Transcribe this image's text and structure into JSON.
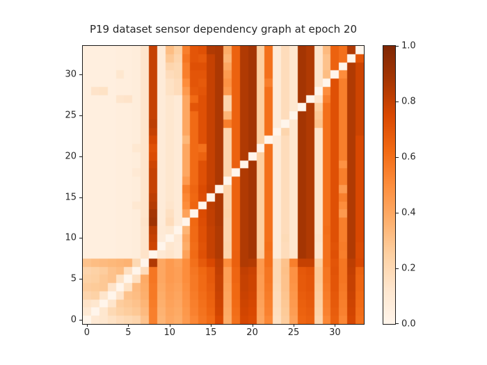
{
  "title": "P19 dataset sensor dependency graph at epoch 20",
  "chart_data": {
    "type": "heatmap",
    "title": "P19 dataset sensor dependency graph at epoch 20",
    "xlabel": "",
    "ylabel": "",
    "x_ticks": [
      0,
      5,
      10,
      15,
      20,
      25,
      30
    ],
    "y_ticks": [
      0,
      5,
      10,
      15,
      20,
      25,
      30
    ],
    "x_range": [
      0,
      34
    ],
    "y_range": [
      0,
      34
    ],
    "origin": "lower",
    "n_rows": 34,
    "n_cols": 34,
    "vmin": 0.0,
    "vmax": 1.0,
    "colormap": "Oranges",
    "colormap_stops": [
      "#fff5eb",
      "#fee6ce",
      "#fdd0a2",
      "#fdae6b",
      "#fd8d3c",
      "#f16913",
      "#d94801",
      "#a63603",
      "#7f2704"
    ],
    "colorbar": {
      "tick_labels": [
        "0.0",
        "0.2",
        "0.4",
        "0.6",
        "0.8",
        "1.0"
      ],
      "tick_values": [
        0.0,
        0.2,
        0.4,
        0.6,
        0.8,
        1.0
      ]
    },
    "values": [
      [
        0.0,
        0.1,
        0.12,
        0.15,
        0.18,
        0.2,
        0.22,
        0.3,
        0.55,
        0.35,
        0.4,
        0.38,
        0.45,
        0.52,
        0.58,
        0.62,
        0.75,
        0.38,
        0.6,
        0.76,
        0.74,
        0.4,
        0.52,
        0.16,
        0.26,
        0.42,
        0.64,
        0.66,
        0.22,
        0.52,
        0.66,
        0.52,
        0.76,
        0.6
      ],
      [
        0.1,
        0.0,
        0.12,
        0.2,
        0.24,
        0.26,
        0.28,
        0.33,
        0.55,
        0.36,
        0.41,
        0.39,
        0.46,
        0.54,
        0.59,
        0.64,
        0.77,
        0.39,
        0.61,
        0.77,
        0.75,
        0.41,
        0.54,
        0.17,
        0.27,
        0.44,
        0.65,
        0.67,
        0.24,
        0.54,
        0.67,
        0.54,
        0.77,
        0.61
      ],
      [
        0.14,
        0.12,
        0.0,
        0.13,
        0.26,
        0.28,
        0.3,
        0.35,
        0.56,
        0.37,
        0.42,
        0.4,
        0.47,
        0.55,
        0.6,
        0.65,
        0.78,
        0.4,
        0.62,
        0.78,
        0.76,
        0.42,
        0.55,
        0.18,
        0.28,
        0.45,
        0.66,
        0.68,
        0.25,
        0.55,
        0.68,
        0.55,
        0.78,
        0.62
      ],
      [
        0.22,
        0.24,
        0.13,
        0.0,
        0.14,
        0.3,
        0.32,
        0.37,
        0.57,
        0.38,
        0.43,
        0.41,
        0.48,
        0.56,
        0.61,
        0.66,
        0.79,
        0.41,
        0.63,
        0.79,
        0.77,
        0.43,
        0.56,
        0.18,
        0.29,
        0.46,
        0.67,
        0.69,
        0.26,
        0.56,
        0.69,
        0.56,
        0.79,
        0.63
      ],
      [
        0.26,
        0.27,
        0.28,
        0.14,
        0.0,
        0.15,
        0.33,
        0.38,
        0.57,
        0.39,
        0.44,
        0.42,
        0.49,
        0.57,
        0.62,
        0.67,
        0.8,
        0.42,
        0.63,
        0.8,
        0.78,
        0.44,
        0.57,
        0.19,
        0.3,
        0.47,
        0.68,
        0.7,
        0.27,
        0.57,
        0.7,
        0.57,
        0.8,
        0.64
      ],
      [
        0.24,
        0.25,
        0.28,
        0.3,
        0.15,
        0.0,
        0.16,
        0.39,
        0.58,
        0.4,
        0.45,
        0.43,
        0.5,
        0.57,
        0.62,
        0.68,
        0.8,
        0.43,
        0.64,
        0.8,
        0.78,
        0.44,
        0.58,
        0.2,
        0.3,
        0.48,
        0.68,
        0.7,
        0.28,
        0.58,
        0.7,
        0.58,
        0.8,
        0.64
      ],
      [
        0.22,
        0.24,
        0.26,
        0.3,
        0.32,
        0.16,
        0.0,
        0.18,
        0.58,
        0.4,
        0.45,
        0.43,
        0.5,
        0.58,
        0.63,
        0.68,
        0.81,
        0.43,
        0.64,
        0.81,
        0.79,
        0.45,
        0.58,
        0.2,
        0.31,
        0.48,
        0.69,
        0.71,
        0.28,
        0.58,
        0.71,
        0.58,
        0.81,
        0.65
      ],
      [
        0.3,
        0.32,
        0.33,
        0.34,
        0.35,
        0.36,
        0.2,
        0.0,
        0.85,
        0.4,
        0.45,
        0.42,
        0.5,
        0.6,
        0.68,
        0.75,
        0.82,
        0.5,
        0.66,
        0.85,
        0.84,
        0.45,
        0.6,
        0.2,
        0.3,
        0.55,
        0.8,
        0.8,
        0.25,
        0.6,
        0.7,
        0.58,
        0.82,
        0.75
      ],
      [
        0.05,
        0.05,
        0.05,
        0.05,
        0.06,
        0.06,
        0.07,
        0.14,
        0.0,
        0.1,
        0.13,
        0.09,
        0.42,
        0.62,
        0.72,
        0.8,
        0.85,
        0.22,
        0.66,
        0.85,
        0.88,
        0.26,
        0.6,
        0.08,
        0.18,
        0.13,
        0.88,
        0.85,
        0.13,
        0.6,
        0.72,
        0.55,
        0.85,
        0.74
      ],
      [
        0.05,
        0.05,
        0.05,
        0.05,
        0.06,
        0.06,
        0.07,
        0.13,
        0.78,
        0.0,
        0.12,
        0.09,
        0.38,
        0.61,
        0.71,
        0.8,
        0.85,
        0.23,
        0.65,
        0.85,
        0.88,
        0.25,
        0.61,
        0.08,
        0.18,
        0.12,
        0.88,
        0.85,
        0.13,
        0.6,
        0.71,
        0.56,
        0.85,
        0.74
      ],
      [
        0.05,
        0.05,
        0.05,
        0.05,
        0.06,
        0.06,
        0.07,
        0.13,
        0.8,
        0.08,
        0.0,
        0.1,
        0.4,
        0.62,
        0.72,
        0.8,
        0.85,
        0.22,
        0.65,
        0.85,
        0.88,
        0.25,
        0.6,
        0.08,
        0.19,
        0.12,
        0.88,
        0.85,
        0.14,
        0.6,
        0.72,
        0.55,
        0.85,
        0.75
      ],
      [
        0.05,
        0.05,
        0.05,
        0.05,
        0.06,
        0.06,
        0.07,
        0.13,
        0.82,
        0.09,
        0.11,
        0.0,
        0.35,
        0.62,
        0.72,
        0.8,
        0.85,
        0.22,
        0.65,
        0.85,
        0.88,
        0.25,
        0.6,
        0.08,
        0.18,
        0.12,
        0.88,
        0.85,
        0.13,
        0.61,
        0.72,
        0.55,
        0.85,
        0.75
      ],
      [
        0.05,
        0.05,
        0.05,
        0.05,
        0.06,
        0.06,
        0.07,
        0.14,
        0.9,
        0.08,
        0.18,
        0.09,
        0.0,
        0.63,
        0.73,
        0.81,
        0.86,
        0.22,
        0.65,
        0.85,
        0.88,
        0.25,
        0.6,
        0.08,
        0.18,
        0.12,
        0.88,
        0.85,
        0.13,
        0.6,
        0.72,
        0.55,
        0.85,
        0.75
      ],
      [
        0.05,
        0.05,
        0.05,
        0.05,
        0.06,
        0.06,
        0.07,
        0.13,
        0.88,
        0.08,
        0.16,
        0.09,
        0.42,
        0.0,
        0.74,
        0.81,
        0.86,
        0.23,
        0.65,
        0.85,
        0.88,
        0.25,
        0.6,
        0.08,
        0.18,
        0.12,
        0.88,
        0.85,
        0.13,
        0.6,
        0.72,
        0.45,
        0.85,
        0.75
      ],
      [
        0.05,
        0.05,
        0.05,
        0.05,
        0.06,
        0.06,
        0.11,
        0.13,
        0.84,
        0.08,
        0.13,
        0.09,
        0.5,
        0.64,
        0.0,
        0.82,
        0.86,
        0.22,
        0.65,
        0.85,
        0.88,
        0.25,
        0.6,
        0.08,
        0.18,
        0.12,
        0.88,
        0.85,
        0.13,
        0.6,
        0.72,
        0.5,
        0.85,
        0.75
      ],
      [
        0.05,
        0.05,
        0.05,
        0.05,
        0.06,
        0.06,
        0.07,
        0.13,
        0.82,
        0.08,
        0.12,
        0.09,
        0.52,
        0.63,
        0.73,
        0.0,
        0.86,
        0.22,
        0.65,
        0.85,
        0.88,
        0.25,
        0.6,
        0.08,
        0.18,
        0.12,
        0.88,
        0.85,
        0.13,
        0.6,
        0.72,
        0.55,
        0.85,
        0.75
      ],
      [
        0.05,
        0.05,
        0.05,
        0.05,
        0.06,
        0.06,
        0.07,
        0.13,
        0.8,
        0.08,
        0.12,
        0.09,
        0.55,
        0.64,
        0.74,
        0.81,
        0.0,
        0.22,
        0.65,
        0.85,
        0.88,
        0.25,
        0.6,
        0.08,
        0.18,
        0.12,
        0.88,
        0.85,
        0.13,
        0.6,
        0.72,
        0.45,
        0.85,
        0.75
      ],
      [
        0.05,
        0.05,
        0.05,
        0.05,
        0.06,
        0.06,
        0.07,
        0.13,
        0.8,
        0.08,
        0.12,
        0.09,
        0.45,
        0.62,
        0.72,
        0.8,
        0.86,
        0.0,
        0.65,
        0.85,
        0.88,
        0.25,
        0.6,
        0.08,
        0.18,
        0.12,
        0.88,
        0.85,
        0.13,
        0.6,
        0.72,
        0.55,
        0.85,
        0.75
      ],
      [
        0.05,
        0.05,
        0.05,
        0.05,
        0.06,
        0.06,
        0.1,
        0.13,
        0.8,
        0.08,
        0.12,
        0.09,
        0.4,
        0.62,
        0.72,
        0.8,
        0.86,
        0.22,
        0.0,
        0.85,
        0.88,
        0.25,
        0.6,
        0.08,
        0.18,
        0.12,
        0.88,
        0.85,
        0.13,
        0.6,
        0.72,
        0.55,
        0.85,
        0.75
      ],
      [
        0.05,
        0.05,
        0.05,
        0.05,
        0.06,
        0.06,
        0.07,
        0.13,
        0.78,
        0.08,
        0.12,
        0.09,
        0.4,
        0.62,
        0.72,
        0.8,
        0.86,
        0.22,
        0.66,
        0.0,
        0.88,
        0.25,
        0.6,
        0.08,
        0.18,
        0.12,
        0.88,
        0.85,
        0.13,
        0.6,
        0.72,
        0.48,
        0.85,
        0.75
      ],
      [
        0.05,
        0.05,
        0.05,
        0.05,
        0.06,
        0.06,
        0.07,
        0.13,
        0.74,
        0.08,
        0.12,
        0.09,
        0.4,
        0.62,
        0.65,
        0.8,
        0.86,
        0.22,
        0.65,
        0.85,
        0.0,
        0.25,
        0.6,
        0.08,
        0.18,
        0.12,
        0.88,
        0.85,
        0.13,
        0.6,
        0.72,
        0.55,
        0.85,
        0.75
      ],
      [
        0.05,
        0.05,
        0.05,
        0.05,
        0.06,
        0.06,
        0.11,
        0.13,
        0.72,
        0.08,
        0.12,
        0.09,
        0.4,
        0.62,
        0.6,
        0.8,
        0.86,
        0.22,
        0.65,
        0.85,
        0.88,
        0.0,
        0.6,
        0.08,
        0.18,
        0.12,
        0.88,
        0.85,
        0.13,
        0.6,
        0.72,
        0.55,
        0.85,
        0.75
      ],
      [
        0.05,
        0.05,
        0.05,
        0.05,
        0.06,
        0.06,
        0.07,
        0.13,
        0.76,
        0.08,
        0.12,
        0.09,
        0.34,
        0.62,
        0.72,
        0.8,
        0.86,
        0.22,
        0.65,
        0.85,
        0.88,
        0.25,
        0.0,
        0.08,
        0.18,
        0.12,
        0.88,
        0.85,
        0.13,
        0.6,
        0.72,
        0.55,
        0.85,
        0.75
      ],
      [
        0.05,
        0.05,
        0.05,
        0.05,
        0.06,
        0.06,
        0.07,
        0.13,
        0.8,
        0.08,
        0.12,
        0.09,
        0.4,
        0.62,
        0.72,
        0.8,
        0.86,
        0.22,
        0.65,
        0.85,
        0.88,
        0.25,
        0.6,
        0.0,
        0.22,
        0.12,
        0.88,
        0.85,
        0.13,
        0.6,
        0.72,
        0.55,
        0.85,
        0.78
      ],
      [
        0.05,
        0.05,
        0.05,
        0.05,
        0.06,
        0.06,
        0.07,
        0.13,
        0.82,
        0.08,
        0.12,
        0.09,
        0.4,
        0.62,
        0.72,
        0.8,
        0.86,
        0.55,
        0.65,
        0.85,
        0.88,
        0.25,
        0.6,
        0.08,
        0.0,
        0.12,
        0.88,
        0.85,
        0.3,
        0.6,
        0.72,
        0.55,
        0.85,
        0.78
      ],
      [
        0.05,
        0.05,
        0.05,
        0.05,
        0.06,
        0.06,
        0.07,
        0.13,
        0.8,
        0.08,
        0.12,
        0.09,
        0.4,
        0.62,
        0.72,
        0.8,
        0.86,
        0.35,
        0.65,
        0.85,
        0.88,
        0.25,
        0.6,
        0.08,
        0.18,
        0.0,
        0.88,
        0.85,
        0.28,
        0.6,
        0.72,
        0.55,
        0.85,
        0.78
      ],
      [
        0.05,
        0.05,
        0.05,
        0.05,
        0.06,
        0.06,
        0.07,
        0.13,
        0.8,
        0.08,
        0.12,
        0.09,
        0.4,
        0.7,
        0.72,
        0.8,
        0.86,
        0.22,
        0.65,
        0.85,
        0.88,
        0.25,
        0.6,
        0.08,
        0.18,
        0.12,
        0.0,
        0.85,
        0.25,
        0.6,
        0.72,
        0.55,
        0.85,
        0.78
      ],
      [
        0.05,
        0.05,
        0.05,
        0.05,
        0.13,
        0.14,
        0.07,
        0.13,
        0.8,
        0.08,
        0.12,
        0.09,
        0.4,
        0.62,
        0.72,
        0.8,
        0.86,
        0.22,
        0.65,
        0.85,
        0.88,
        0.25,
        0.6,
        0.08,
        0.18,
        0.12,
        0.88,
        0.0,
        0.13,
        0.55,
        0.72,
        0.55,
        0.85,
        0.78
      ],
      [
        0.05,
        0.14,
        0.15,
        0.05,
        0.06,
        0.06,
        0.07,
        0.13,
        0.8,
        0.08,
        0.15,
        0.18,
        0.45,
        0.68,
        0.7,
        0.8,
        0.86,
        0.45,
        0.65,
        0.85,
        0.88,
        0.25,
        0.6,
        0.08,
        0.18,
        0.12,
        0.88,
        0.85,
        0.0,
        0.5,
        0.72,
        0.55,
        0.85,
        0.78
      ],
      [
        0.05,
        0.05,
        0.05,
        0.05,
        0.06,
        0.06,
        0.07,
        0.13,
        0.8,
        0.08,
        0.15,
        0.18,
        0.5,
        0.7,
        0.68,
        0.8,
        0.86,
        0.48,
        0.65,
        0.85,
        0.88,
        0.25,
        0.55,
        0.08,
        0.18,
        0.12,
        0.88,
        0.85,
        0.13,
        0.0,
        0.72,
        0.55,
        0.85,
        0.78
      ],
      [
        0.05,
        0.05,
        0.05,
        0.05,
        0.12,
        0.06,
        0.07,
        0.13,
        0.8,
        0.08,
        0.18,
        0.2,
        0.55,
        0.7,
        0.7,
        0.8,
        0.86,
        0.45,
        0.65,
        0.85,
        0.88,
        0.25,
        0.6,
        0.08,
        0.18,
        0.12,
        0.88,
        0.85,
        0.13,
        0.32,
        0.0,
        0.5,
        0.85,
        0.78
      ],
      [
        0.05,
        0.05,
        0.05,
        0.05,
        0.06,
        0.06,
        0.07,
        0.13,
        0.8,
        0.08,
        0.22,
        0.2,
        0.55,
        0.72,
        0.72,
        0.8,
        0.86,
        0.4,
        0.65,
        0.85,
        0.88,
        0.25,
        0.6,
        0.08,
        0.18,
        0.12,
        0.88,
        0.85,
        0.13,
        0.3,
        0.65,
        0.0,
        0.85,
        0.78
      ],
      [
        0.05,
        0.05,
        0.05,
        0.05,
        0.06,
        0.06,
        0.07,
        0.13,
        0.8,
        0.08,
        0.28,
        0.22,
        0.58,
        0.7,
        0.68,
        0.8,
        0.86,
        0.35,
        0.65,
        0.85,
        0.88,
        0.25,
        0.6,
        0.08,
        0.18,
        0.12,
        0.88,
        0.85,
        0.13,
        0.3,
        0.65,
        0.6,
        0.0,
        0.7
      ],
      [
        0.05,
        0.05,
        0.05,
        0.05,
        0.06,
        0.06,
        0.07,
        0.13,
        0.8,
        0.08,
        0.32,
        0.25,
        0.55,
        0.7,
        0.72,
        0.85,
        0.86,
        0.38,
        0.65,
        0.85,
        0.88,
        0.25,
        0.6,
        0.08,
        0.18,
        0.12,
        0.88,
        0.85,
        0.13,
        0.33,
        0.65,
        0.6,
        0.85,
        0.0
      ]
    ]
  }
}
